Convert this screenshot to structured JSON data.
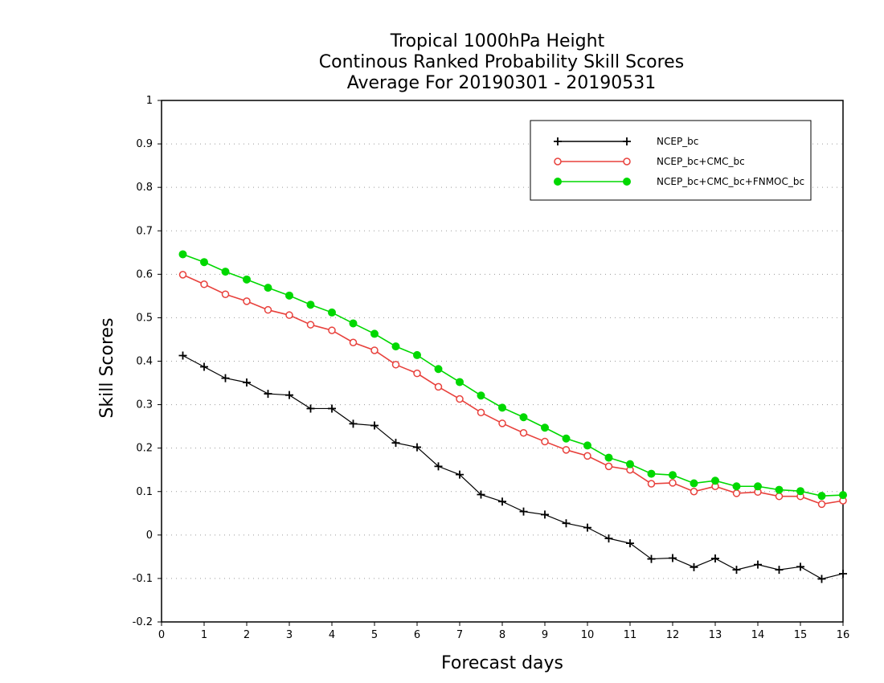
{
  "chart_data": {
    "type": "line",
    "title": [
      "Tropical 1000hPa Height",
      "Continous Ranked Probability Skill Scores",
      "Average For 20190301 - 20190531"
    ],
    "xlabel": "Forecast days",
    "ylabel": "Skill Scores",
    "xlim": [
      0,
      16
    ],
    "ylim": [
      -0.2,
      1
    ],
    "xticks": [
      0,
      1,
      2,
      3,
      4,
      5,
      6,
      7,
      8,
      9,
      10,
      11,
      12,
      13,
      14,
      15,
      16
    ],
    "yticks": [
      -0.2,
      -0.1,
      0,
      0.1,
      0.2,
      0.3,
      0.4,
      0.5,
      0.6,
      0.7,
      0.8,
      0.9,
      1
    ],
    "ytick_labels": [
      "-0.2",
      "-0.1",
      "0",
      "0.1",
      "0.2",
      "0.3",
      "0.4",
      "0.5",
      "0.6",
      "0.7",
      "0.8",
      "0.9",
      "1"
    ],
    "grid": "horizontal dotted",
    "legend_position": "top-right",
    "x": [
      0.5,
      1,
      1.5,
      2,
      2.5,
      3,
      3.5,
      4,
      4.5,
      5,
      5.5,
      6,
      6.5,
      7,
      7.5,
      8,
      8.5,
      9,
      9.5,
      10,
      10.5,
      11,
      11.5,
      12,
      12.5,
      13,
      13.5,
      14,
      14.5,
      15,
      15.5,
      16
    ],
    "series": [
      {
        "name": "NCEP_bc",
        "color": "#000000",
        "marker": "plus",
        "values": [
          0.413,
          0.387,
          0.361,
          0.351,
          0.325,
          0.322,
          0.291,
          0.291,
          0.256,
          0.252,
          0.212,
          0.202,
          0.158,
          0.139,
          0.093,
          0.077,
          0.054,
          0.047,
          0.027,
          0.017,
          -0.008,
          -0.019,
          -0.055,
          -0.053,
          -0.074,
          -0.054,
          -0.08,
          -0.068,
          -0.08,
          -0.073,
          -0.101,
          -0.089
        ]
      },
      {
        "name": "NCEP_bc+CMC_bc",
        "color": "#e8413c",
        "marker": "open-circle",
        "values": [
          0.599,
          0.577,
          0.554,
          0.538,
          0.518,
          0.506,
          0.484,
          0.471,
          0.443,
          0.425,
          0.392,
          0.372,
          0.341,
          0.313,
          0.282,
          0.257,
          0.235,
          0.215,
          0.196,
          0.182,
          0.158,
          0.15,
          0.118,
          0.12,
          0.1,
          0.112,
          0.096,
          0.099,
          0.089,
          0.089,
          0.071,
          0.079
        ]
      },
      {
        "name": "NCEP_bc+CMC_bc+FNMOC_bc",
        "color": "#00d800",
        "marker": "filled-circle",
        "values": [
          0.646,
          0.628,
          0.606,
          0.588,
          0.569,
          0.551,
          0.53,
          0.512,
          0.487,
          0.463,
          0.434,
          0.414,
          0.382,
          0.352,
          0.321,
          0.293,
          0.271,
          0.247,
          0.222,
          0.206,
          0.178,
          0.163,
          0.141,
          0.138,
          0.119,
          0.125,
          0.112,
          0.112,
          0.104,
          0.101,
          0.09,
          0.092
        ]
      }
    ]
  }
}
